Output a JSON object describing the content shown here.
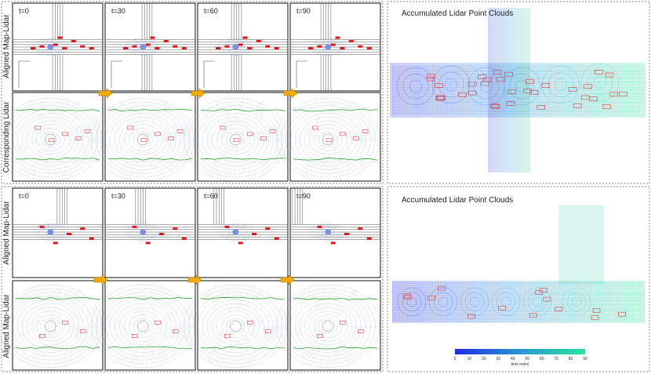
{
  "panels": [
    {
      "row_labels": [
        "Aligned Map-Lidar",
        "Corresponding Lidar"
      ],
      "time_labels": [
        "t=0",
        "t=30",
        "t=60",
        "t=90"
      ],
      "accumulated_title": "Accumulated Lidar Point Clouds",
      "map_style": "cross"
    },
    {
      "row_labels": [
        "Aligned Map-Lidar",
        "Aligned Map-Lidar"
      ],
      "time_labels": [
        "t=0",
        "t=30",
        "t=60",
        "t=90"
      ],
      "accumulated_title": "Accumulated Lidar Point Clouds",
      "map_style": "tee"
    }
  ],
  "colorbar": {
    "label": "time index",
    "ticks": [
      "0",
      "10",
      "20",
      "30",
      "40",
      "50",
      "60",
      "70",
      "80",
      "90"
    ],
    "min": 0,
    "max": 90,
    "start_color": "#1e2ae6",
    "end_color": "#29e39a"
  },
  "colors": {
    "map_line": "#555555",
    "lidar_point": "#3d57c9",
    "box_solid": "#e0151b",
    "box_outline": "#e03a3a",
    "boundary": "#2e9c2e",
    "arrow": "#f2a900"
  }
}
